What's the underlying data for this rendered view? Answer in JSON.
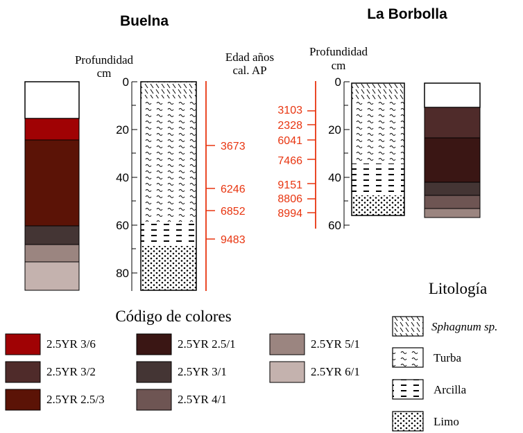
{
  "sites": {
    "buelna": {
      "name": "Buelna"
    },
    "borbolla": {
      "name": "La Borbolla"
    }
  },
  "depth_label": {
    "line1": "Profundidad",
    "line2": "cm"
  },
  "age_label": {
    "line1": "Edad años",
    "line2": "cal. AP"
  },
  "buelna_ticks": [
    "0",
    "20",
    "40",
    "60",
    "80"
  ],
  "borbolla_ticks": [
    "0",
    "20",
    "40",
    "60"
  ],
  "buelna_ages": [
    "3673",
    "6246",
    "6852",
    "9483"
  ],
  "borbolla_ages": [
    "3103",
    "2328",
    "6041",
    "7466",
    "9151",
    "8806",
    "8994"
  ],
  "color_legend": {
    "title": "Código de colores",
    "items": [
      {
        "label": "2.5YR 3/6",
        "color": "#a00204"
      },
      {
        "label": "2.5YR 3/2",
        "color": "#4f2b2a"
      },
      {
        "label": "2.5YR 2.5/3",
        "color": "#5b1306"
      },
      {
        "label": "2.5YR 2.5/1",
        "color": "#3a1614"
      },
      {
        "label": "2.5YR 3/1",
        "color": "#443534"
      },
      {
        "label": "2.5YR 4/1",
        "color": "#6e5553"
      },
      {
        "label": "2.5YR 5/1",
        "color": "#9b8580"
      },
      {
        "label": "2.5YR 6/1",
        "color": "#c4b2ae"
      }
    ]
  },
  "lithology": {
    "title": "Litología",
    "items": [
      {
        "label": "Sphagnum sp.",
        "pattern": "sphagnum"
      },
      {
        "label": "Turba",
        "pattern": "turba"
      },
      {
        "label": "Arcilla",
        "pattern": "arcilla"
      },
      {
        "label": "Limo",
        "pattern": "limo"
      }
    ]
  },
  "colors": {
    "age_accent": "#e8340f",
    "empty": "#ffffff"
  }
}
